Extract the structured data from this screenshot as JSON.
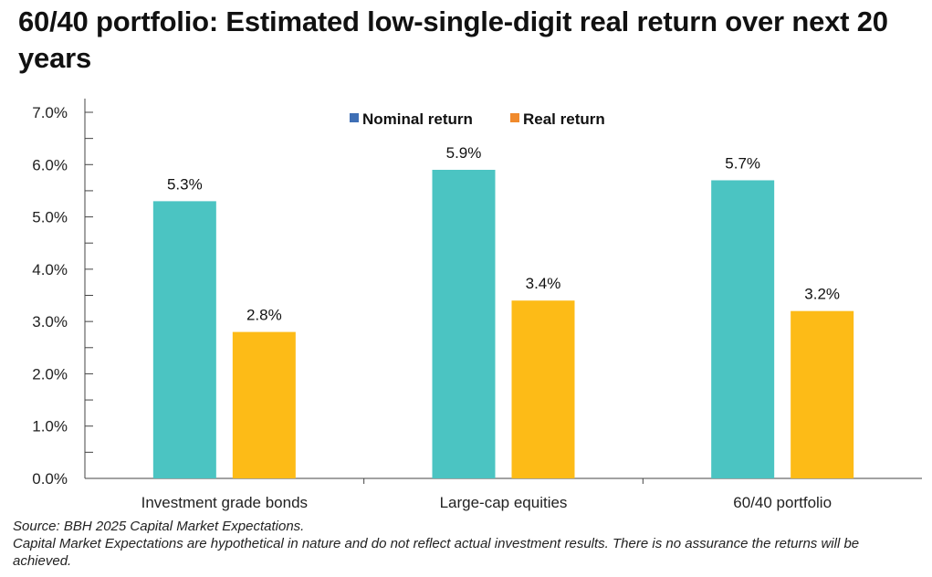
{
  "title": "60/40 portfolio: Estimated low-single-digit real return over next 20 years",
  "chart_data": {
    "type": "bar",
    "title": "60/40 portfolio: Estimated low-single-digit real return over next 20 years",
    "categories": [
      "Investment grade bonds",
      "Large-cap equities",
      "60/40 portfolio"
    ],
    "series": [
      {
        "name": "Nominal return",
        "values": [
          5.3,
          5.9,
          5.7
        ],
        "labels": [
          "5.3%",
          "5.9%",
          "5.7%"
        ],
        "color": "#4bc4c2",
        "legend_color": "#3f6fb5"
      },
      {
        "name": "Real return",
        "values": [
          2.8,
          3.4,
          3.2
        ],
        "labels": [
          "2.8%",
          "3.4%",
          "3.2%"
        ],
        "color": "#fdbb17",
        "legend_color": "#f08a2c"
      }
    ],
    "yticks": [
      "0.0%",
      "1.0%",
      "2.0%",
      "3.0%",
      "4.0%",
      "5.0%",
      "6.0%",
      "7.0%"
    ],
    "ylim": [
      0,
      7
    ],
    "xlabel": "",
    "ylabel": "",
    "legend": "top-center",
    "grid": false
  },
  "notes": {
    "source": "Source: BBH 2025 Capital Market Expectations.",
    "disclaimer": "Capital Market Expectations are hypothetical in nature and do not reflect actual investment results. There is no assurance the returns will be achieved."
  }
}
